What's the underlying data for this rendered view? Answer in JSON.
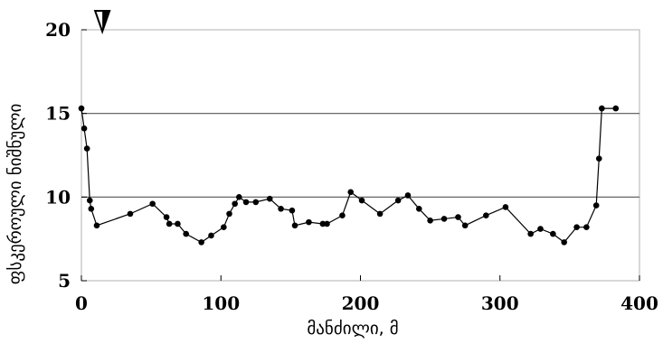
{
  "chart_data": {
    "type": "line",
    "title": "",
    "xlabel": "მანძილი, მ",
    "ylabel": "ფსკეროული ნიშნული",
    "xlim": [
      0,
      400
    ],
    "ylim": [
      5,
      20
    ],
    "x_ticks": [
      "0",
      "100",
      "200",
      "300",
      "400"
    ],
    "y_ticks": [
      "5",
      "10",
      "15",
      "20"
    ],
    "reference_lines": [
      10,
      15
    ],
    "marker": "water-level-triangle",
    "marker_x": 15,
    "colors": {
      "line": "#000000",
      "frame": "#b0b0b0",
      "reference": "#555555"
    },
    "series": [
      {
        "x": [
          0,
          2,
          4,
          6,
          7,
          11,
          35,
          51,
          61,
          63,
          69,
          75,
          86,
          93,
          102,
          106,
          110,
          113,
          118,
          125,
          135,
          143,
          151,
          153,
          163,
          173,
          176,
          187,
          193,
          201,
          214,
          227,
          234,
          242,
          250,
          260,
          270,
          275,
          290,
          304,
          322,
          329,
          338,
          346,
          355,
          362,
          369,
          371,
          373,
          383
        ],
        "y": [
          15.3,
          14.1,
          12.9,
          9.8,
          9.3,
          8.3,
          9.0,
          9.6,
          8.8,
          8.4,
          8.4,
          7.8,
          7.3,
          7.7,
          8.2,
          9.0,
          9.6,
          10.0,
          9.7,
          9.7,
          9.9,
          9.3,
          9.2,
          8.3,
          8.5,
          8.4,
          8.4,
          8.9,
          10.3,
          9.8,
          9.0,
          9.8,
          10.1,
          9.3,
          8.6,
          8.7,
          8.8,
          8.3,
          8.9,
          9.4,
          7.8,
          8.1,
          7.8,
          7.3,
          8.2,
          8.2,
          9.5,
          12.3,
          15.3,
          15.3
        ]
      }
    ]
  }
}
